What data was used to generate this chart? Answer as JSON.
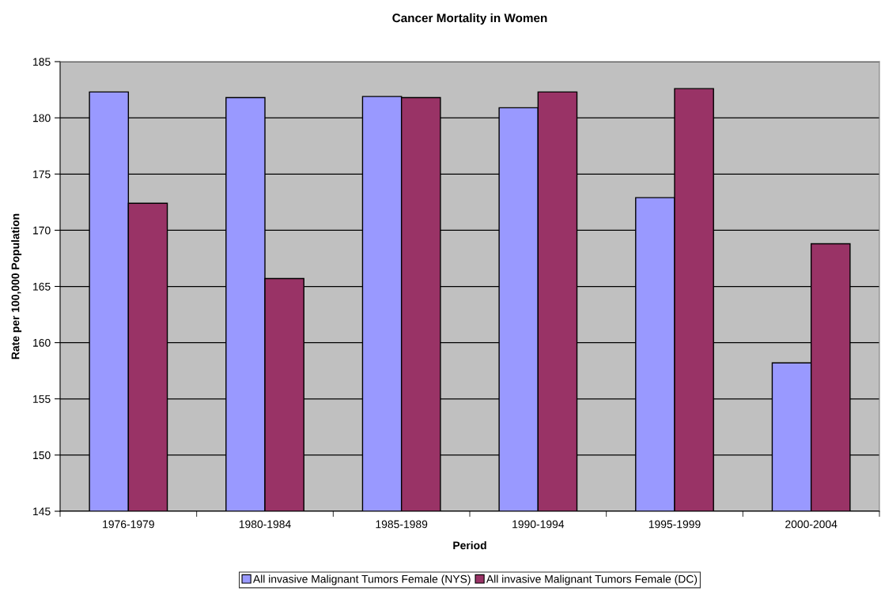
{
  "chart_data": {
    "type": "bar",
    "title": "Cancer Mortality in Women",
    "xlabel": "Period",
    "ylabel": "Rate per 100,000 Population",
    "categories": [
      "1976-1979",
      "1980-1984",
      "1985-1989",
      "1990-1994",
      "1995-1999",
      "2000-2004"
    ],
    "series": [
      {
        "name": "All invasive Malignant Tumors Female (NYS)",
        "color": "#9999ff",
        "values": [
          182.3,
          181.8,
          181.9,
          180.9,
          172.9,
          158.2
        ]
      },
      {
        "name": "All invasive Malignant Tumors Female (DC)",
        "color": "#993366",
        "values": [
          172.4,
          165.7,
          181.8,
          182.3,
          182.6,
          168.8
        ]
      }
    ],
    "ylim": [
      145,
      185
    ],
    "yticks": [
      145,
      150,
      155,
      160,
      165,
      170,
      175,
      180,
      185
    ],
    "grid": "y",
    "legend": "bottom"
  }
}
